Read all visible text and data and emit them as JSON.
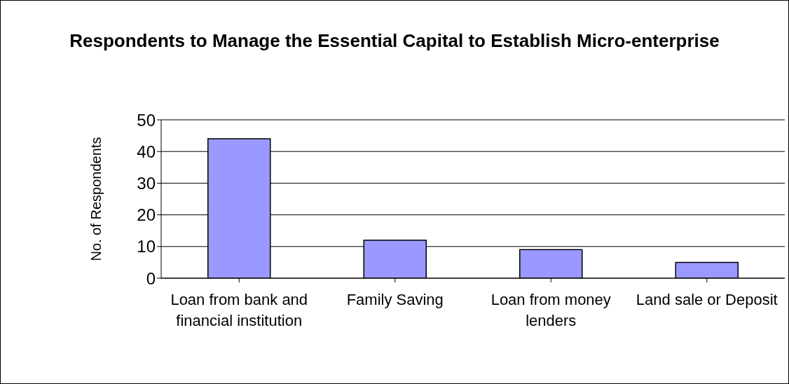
{
  "chart_data": {
    "type": "bar",
    "title": "Respondents to Manage the Essential Capital to Establish Micro-enterprise",
    "ylabel": "No. of Respondents",
    "categories": [
      "Loan from bank and financial institution",
      "Family Saving",
      "Loan from money lenders",
      "Land sale or Deposit"
    ],
    "values": [
      44,
      12,
      9,
      5
    ],
    "color": "#9999ff",
    "ylim": [
      0,
      50
    ],
    "yticks": [
      0,
      10,
      20,
      30,
      40,
      50
    ],
    "grid": "y"
  }
}
